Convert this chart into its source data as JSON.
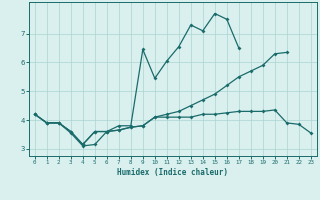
{
  "xlabel": "Humidex (Indice chaleur)",
  "x": [
    0,
    1,
    2,
    3,
    4,
    5,
    6,
    7,
    8,
    9,
    10,
    11,
    12,
    13,
    14,
    15,
    16,
    17,
    18,
    19,
    20,
    21,
    22,
    23
  ],
  "line_bottom": [
    4.2,
    3.9,
    3.9,
    3.6,
    3.15,
    3.6,
    3.6,
    3.65,
    3.75,
    3.8,
    4.1,
    4.1,
    4.1,
    4.1,
    4.2,
    4.2,
    4.25,
    4.3,
    4.3,
    4.3,
    4.35,
    3.9,
    3.85,
    3.55
  ],
  "line_mid": [
    4.2,
    3.9,
    3.9,
    3.6,
    3.15,
    3.6,
    3.6,
    3.65,
    3.75,
    3.8,
    4.1,
    4.2,
    4.3,
    4.5,
    4.7,
    4.9,
    5.2,
    5.5,
    5.7,
    5.9,
    6.3,
    6.35,
    null,
    null
  ],
  "line_top": [
    4.2,
    3.9,
    3.9,
    3.55,
    3.1,
    3.15,
    3.6,
    3.8,
    3.8,
    6.45,
    5.45,
    6.05,
    6.55,
    7.3,
    7.1,
    7.7,
    7.5,
    6.5,
    null,
    null,
    null,
    null,
    null,
    null
  ],
  "bg_color": "#daf0ee",
  "line_color": "#1a6b6b",
  "grid_color": "#aad4d0",
  "ylim": [
    2.75,
    8.1
  ],
  "xlim": [
    -0.5,
    23.5
  ],
  "yticks": [
    3,
    4,
    5,
    6,
    7
  ],
  "xticks": [
    0,
    1,
    2,
    3,
    4,
    5,
    6,
    7,
    8,
    9,
    10,
    11,
    12,
    13,
    14,
    15,
    16,
    17,
    18,
    19,
    20,
    21,
    22,
    23
  ]
}
